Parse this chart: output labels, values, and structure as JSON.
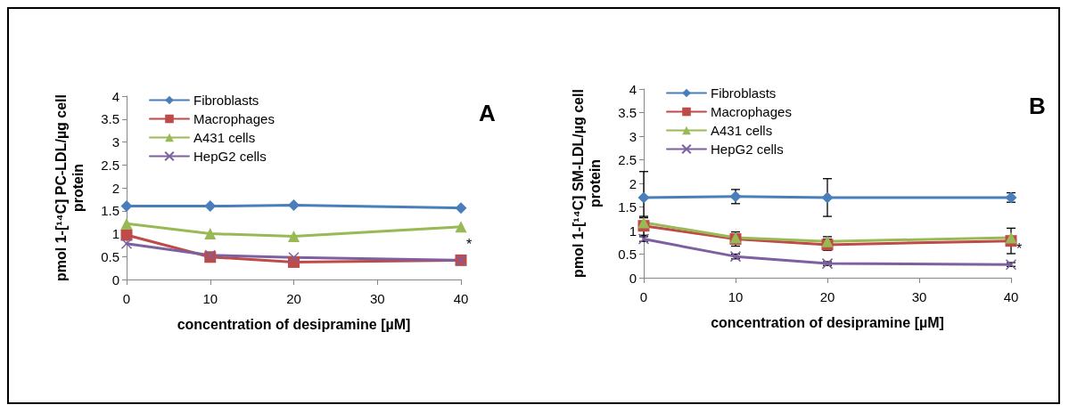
{
  "chart_data": [
    {
      "type": "line",
      "ylabel": "pmol 1-[¹⁴C] PC-LDL/µg cell protein",
      "xlabel": "concentration of desipramine [µM]",
      "x": [
        0,
        10,
        20,
        40
      ],
      "xlim": [
        0,
        40
      ],
      "xticks": [
        0,
        10,
        20,
        30,
        40
      ],
      "ylim": [
        0,
        4
      ],
      "yticks": [
        0,
        0.5,
        1,
        1.5,
        2,
        2.5,
        3,
        3.5,
        4
      ],
      "grid": false,
      "legend": "top left",
      "annotations": [
        "A",
        {
          "text": "*",
          "x": 40,
          "y": 0.42
        }
      ],
      "series": [
        {
          "name": "Fibroblasts",
          "color": "#4a7ebb",
          "marker": "diamond",
          "values": [
            1.6,
            1.6,
            1.62,
            1.56
          ]
        },
        {
          "name": "Macrophages",
          "color": "#be4b48",
          "marker": "square",
          "values": [
            0.97,
            0.49,
            0.38,
            0.42
          ]
        },
        {
          "name": "A431 cells",
          "color": "#98b954",
          "marker": "triangle",
          "values": [
            1.22,
            1.0,
            0.94,
            1.15
          ]
        },
        {
          "name": "HepG2 cells",
          "color": "#7d60a0",
          "marker": "cross",
          "values": [
            0.78,
            0.53,
            0.48,
            0.42
          ]
        }
      ]
    },
    {
      "type": "line",
      "ylabel": "pmol 1-[¹⁴C] SM-LDL/µg cell protein",
      "xlabel": "concentration of desipramine [µM]",
      "x": [
        0,
        10,
        20,
        40
      ],
      "xlim": [
        0,
        40
      ],
      "xticks": [
        0,
        10,
        20,
        30,
        40
      ],
      "ylim": [
        0,
        4
      ],
      "yticks": [
        0,
        0.5,
        1,
        1.5,
        2,
        2.5,
        3,
        3.5,
        4
      ],
      "grid": false,
      "legend": "top left",
      "annotations": [
        "B",
        {
          "text": "*",
          "x": 40,
          "y": 0.28
        }
      ],
      "series": [
        {
          "name": "Fibroblasts",
          "color": "#4a7ebb",
          "marker": "diamond",
          "values": [
            1.7,
            1.72,
            1.7,
            1.7
          ],
          "errors": [
            0.55,
            0.15,
            0.4,
            0.1
          ]
        },
        {
          "name": "Macrophages",
          "color": "#be4b48",
          "marker": "square",
          "values": [
            1.1,
            0.82,
            0.7,
            0.78
          ],
          "errors": [
            0.2,
            0.15,
            0.12,
            0.27
          ]
        },
        {
          "name": "A431 cells",
          "color": "#98b954",
          "marker": "triangle",
          "values": [
            1.17,
            0.85,
            0.77,
            0.85
          ],
          "errors": [
            0.1,
            null,
            0.1,
            null
          ]
        },
        {
          "name": "HepG2 cells",
          "color": "#7d60a0",
          "marker": "cross",
          "values": [
            0.82,
            0.45,
            0.3,
            0.28
          ],
          "errors": [
            0.05,
            0.05,
            0.04,
            0.04
          ]
        }
      ]
    }
  ]
}
